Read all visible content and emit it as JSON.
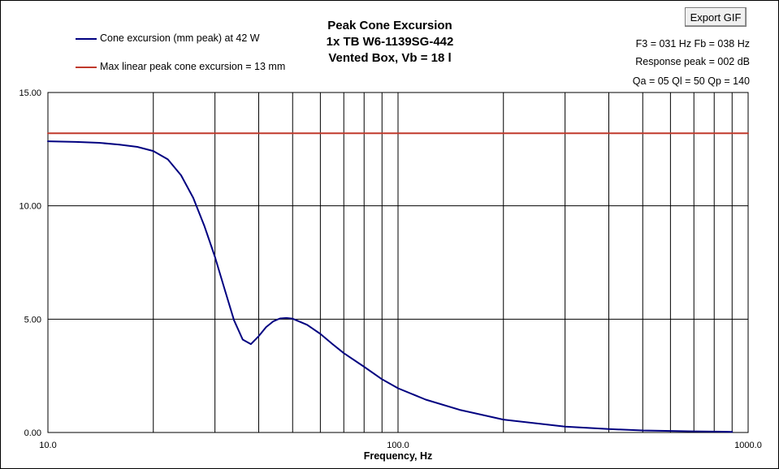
{
  "toolbar": {
    "export_label": "Export GIF"
  },
  "header": {
    "title_lines": [
      "Peak Cone Excursion",
      "1x TB W6-1139SG-442",
      "Vented Box, Vb = 18 l"
    ]
  },
  "info": {
    "line1": "F3 = 031 Hz  Fb = 038 Hz",
    "line2": "Response peak = 002 dB",
    "line3": "Qa = 05  Ql = 50  Qp = 140"
  },
  "colors": {
    "excursion": "#000080",
    "limit": "#c0392b"
  },
  "chart_data": {
    "type": "line",
    "title": "Peak Cone Excursion",
    "xlabel": "Frequency, Hz",
    "ylabel": "",
    "xscale": "log",
    "xlim": [
      10,
      1000
    ],
    "ylim": [
      0,
      15
    ],
    "grid": true,
    "legend_position": "top-left",
    "x_tick_labels": [
      "10.0",
      "100.0",
      "1000.0"
    ],
    "y_tick_labels": [
      "0.00",
      "5.00",
      "10.00",
      "15.00"
    ],
    "series": [
      {
        "name": "Cone excursion (mm peak) at 42 W",
        "x": [
          10,
          12,
          14,
          16,
          18,
          20,
          22,
          24,
          26,
          28,
          30,
          32,
          34,
          36,
          38,
          40,
          42,
          44,
          46,
          48,
          50,
          55,
          60,
          65,
          70,
          80,
          90,
          100,
          120,
          150,
          200,
          300,
          400,
          500,
          700,
          900
        ],
        "y": [
          12.85,
          12.82,
          12.78,
          12.7,
          12.6,
          12.42,
          12.05,
          11.35,
          10.35,
          9.1,
          7.75,
          6.3,
          4.95,
          4.1,
          3.9,
          4.25,
          4.65,
          4.9,
          5.03,
          5.05,
          5.02,
          4.75,
          4.35,
          3.9,
          3.5,
          2.9,
          2.35,
          1.95,
          1.45,
          1.0,
          0.57,
          0.26,
          0.15,
          0.09,
          0.05,
          0.03
        ]
      },
      {
        "name": "Max linear peak cone excursion = 13 mm",
        "x": [
          10,
          1000
        ],
        "y": [
          13.2,
          13.2
        ]
      }
    ]
  }
}
